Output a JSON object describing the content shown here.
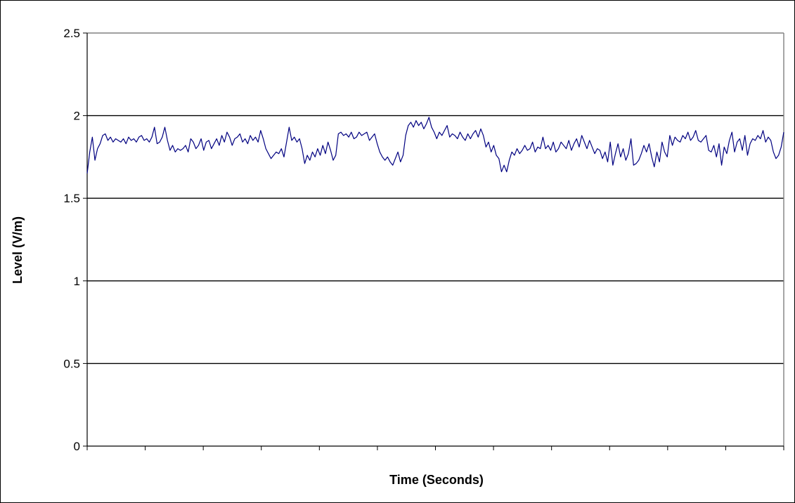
{
  "chart_data": {
    "type": "line",
    "title": "",
    "xlabel": "Time (Seconds)",
    "ylabel": "Level (V/m)",
    "ylim": [
      0,
      2.5
    ],
    "y_ticks": [
      "0",
      "0.5",
      "1",
      "1.5",
      "2",
      "2.5"
    ],
    "x_tick_count": 13,
    "x_tick_labels_shown": false,
    "grid": "horizontal",
    "legend": "none",
    "series_color": "#000080",
    "series": [
      {
        "values": [
          1.65,
          1.78,
          1.87,
          1.73,
          1.8,
          1.83,
          1.88,
          1.89,
          1.85,
          1.87,
          1.84,
          1.86,
          1.85,
          1.84,
          1.86,
          1.83,
          1.87,
          1.85,
          1.86,
          1.84,
          1.87,
          1.88,
          1.85,
          1.86,
          1.84,
          1.87,
          1.93,
          1.83,
          1.84,
          1.87,
          1.93,
          1.85,
          1.79,
          1.82,
          1.78,
          1.8,
          1.79,
          1.8,
          1.82,
          1.78,
          1.86,
          1.84,
          1.8,
          1.82,
          1.86,
          1.79,
          1.84,
          1.85,
          1.8,
          1.83,
          1.86,
          1.82,
          1.88,
          1.84,
          1.9,
          1.87,
          1.82,
          1.86,
          1.87,
          1.89,
          1.84,
          1.86,
          1.83,
          1.88,
          1.85,
          1.87,
          1.84,
          1.91,
          1.86,
          1.8,
          1.77,
          1.74,
          1.76,
          1.78,
          1.77,
          1.8,
          1.75,
          1.84,
          1.93,
          1.85,
          1.87,
          1.84,
          1.86,
          1.8,
          1.71,
          1.76,
          1.73,
          1.78,
          1.75,
          1.8,
          1.76,
          1.82,
          1.77,
          1.84,
          1.79,
          1.73,
          1.76,
          1.89,
          1.9,
          1.88,
          1.89,
          1.87,
          1.9,
          1.86,
          1.87,
          1.9,
          1.88,
          1.89,
          1.9,
          1.85,
          1.87,
          1.89,
          1.83,
          1.78,
          1.75,
          1.73,
          1.75,
          1.72,
          1.7,
          1.74,
          1.78,
          1.72,
          1.76,
          1.88,
          1.94,
          1.96,
          1.93,
          1.97,
          1.94,
          1.96,
          1.92,
          1.95,
          1.99,
          1.93,
          1.9,
          1.86,
          1.9,
          1.88,
          1.91,
          1.94,
          1.87,
          1.89,
          1.88,
          1.86,
          1.9,
          1.87,
          1.85,
          1.89,
          1.86,
          1.89,
          1.91,
          1.87,
          1.92,
          1.88,
          1.81,
          1.84,
          1.78,
          1.82,
          1.76,
          1.74,
          1.66,
          1.7,
          1.66,
          1.73,
          1.78,
          1.76,
          1.8,
          1.77,
          1.79,
          1.82,
          1.79,
          1.8,
          1.84,
          1.78,
          1.81,
          1.8,
          1.87,
          1.8,
          1.82,
          1.79,
          1.84,
          1.78,
          1.8,
          1.84,
          1.82,
          1.8,
          1.85,
          1.79,
          1.83,
          1.86,
          1.81,
          1.88,
          1.84,
          1.8,
          1.85,
          1.81,
          1.77,
          1.8,
          1.79,
          1.74,
          1.78,
          1.72,
          1.84,
          1.7,
          1.77,
          1.83,
          1.75,
          1.8,
          1.73,
          1.77,
          1.86,
          1.7,
          1.71,
          1.73,
          1.77,
          1.82,
          1.78,
          1.83,
          1.75,
          1.69,
          1.78,
          1.72,
          1.84,
          1.78,
          1.75,
          1.88,
          1.82,
          1.87,
          1.85,
          1.84,
          1.88,
          1.86,
          1.9,
          1.85,
          1.87,
          1.91,
          1.85,
          1.84,
          1.86,
          1.88,
          1.79,
          1.78,
          1.82,
          1.75,
          1.83,
          1.7,
          1.81,
          1.77,
          1.85,
          1.9,
          1.78,
          1.84,
          1.86,
          1.79,
          1.88,
          1.76,
          1.83,
          1.86,
          1.85,
          1.88,
          1.86,
          1.91,
          1.84,
          1.87,
          1.85,
          1.78,
          1.74,
          1.76,
          1.81,
          1.9
        ]
      }
    ]
  }
}
